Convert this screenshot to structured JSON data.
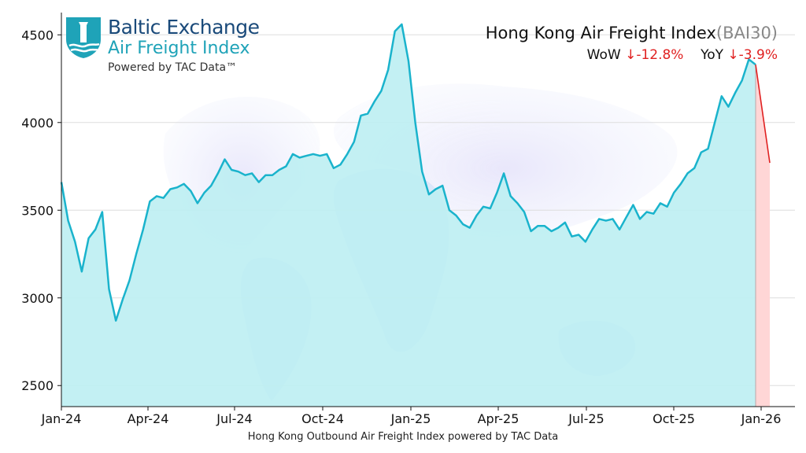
{
  "logo": {
    "name": "Baltic Exchange",
    "sub": "Air Freight Index",
    "powered": "Powered by TAC Data™"
  },
  "header": {
    "title": "Hong Kong Air Freight Index",
    "code": "(BAI30)",
    "wow_label": "WoW",
    "wow_value": "↓-12.8%",
    "yoy_label": "YoY",
    "yoy_value": "↓-3.9%"
  },
  "colors": {
    "line": "#1ab3cc",
    "fill": "#bdeef2",
    "drop_line": "#e02020",
    "drop_fill": "#ffd6d6",
    "grid": "#dddddd"
  },
  "chart_data": {
    "type": "area",
    "xlabel": "Hong Kong Outbound Air Freight Index powered by TAC Data",
    "ylabel": "",
    "ylim": [
      2380,
      4600
    ],
    "yticks": [
      2500,
      3000,
      3500,
      4000,
      4500
    ],
    "x_tick_labels": [
      "Jan-24",
      "Apr-24",
      "Jul-24",
      "Oct-24",
      "Jan-25",
      "Apr-25",
      "Jul-25",
      "Oct-25",
      "Jan-26"
    ],
    "grid": true,
    "series": [
      {
        "values": [
          3660,
          3440,
          3320,
          3150,
          3340,
          3390,
          3490,
          3050,
          2870,
          2990,
          3100,
          3250,
          3390,
          3550,
          3580,
          3570,
          3620,
          3630,
          3650,
          3610,
          3540,
          3600,
          3640,
          3710,
          3790,
          3730,
          3720,
          3700,
          3710,
          3660,
          3700,
          3700,
          3730,
          3750,
          3820,
          3800,
          3810,
          3820,
          3810,
          3820,
          3740,
          3760,
          3820,
          3890,
          4040,
          4050,
          4120,
          4180,
          4300,
          4520,
          4560,
          4350,
          4000,
          3720,
          3590,
          3620,
          3640,
          3500,
          3470,
          3420,
          3400,
          3470,
          3520,
          3510,
          3600,
          3710,
          3580,
          3540,
          3490,
          3380,
          3410,
          3410,
          3380,
          3400,
          3430,
          3350,
          3360,
          3320,
          3390,
          3450,
          3440,
          3450,
          3390,
          3460,
          3530,
          3450,
          3490,
          3480,
          3540,
          3520,
          3600,
          3650,
          3710,
          3740,
          3830,
          3850,
          4000,
          4150,
          4090,
          4170,
          4240,
          4360,
          4330
        ]
      }
    ],
    "latest": {
      "value": 3770
    }
  }
}
